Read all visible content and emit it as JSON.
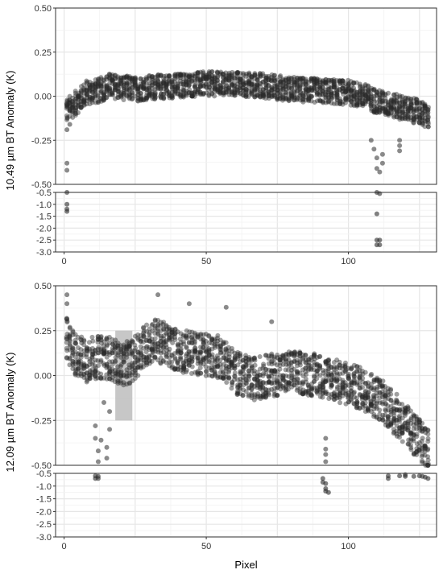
{
  "chart_data": {
    "type": "scatter",
    "xlabel": "Pixel",
    "x_ticks": [
      0,
      50,
      100
    ],
    "xlim": [
      -3,
      131
    ],
    "grid": true,
    "colors": {
      "points": "#2b2b2b",
      "panel_border": "#333333",
      "grid_major": "#e6e6e6",
      "grid_minor": "#f2f2f2",
      "highlight": "#bdbdbd"
    },
    "panels": [
      {
        "ylabel": "10.49 µm BT Anomaly (K)",
        "upper": {
          "ylim": [
            -0.5,
            0.5
          ],
          "y_ticks": [
            "0.50",
            "0.25",
            "0.00",
            "-0.25",
            "-0.50"
          ],
          "y_values": [
            0.5,
            0.25,
            0,
            -0.25,
            -0.5
          ],
          "profile": [
            [
              1,
              -0.08
            ],
            [
              4,
              -0.04
            ],
            [
              8,
              0.02
            ],
            [
              12,
              0.03
            ],
            [
              16,
              0.06
            ],
            [
              20,
              0.05
            ],
            [
              25,
              0.04
            ],
            [
              30,
              0.05
            ],
            [
              40,
              0.06
            ],
            [
              50,
              0.07
            ],
            [
              60,
              0.07
            ],
            [
              70,
              0.06
            ],
            [
              80,
              0.04
            ],
            [
              90,
              0.03
            ],
            [
              100,
              0.02
            ],
            [
              106,
              0.0
            ],
            [
              110,
              -0.03
            ],
            [
              115,
              -0.05
            ],
            [
              120,
              -0.07
            ],
            [
              125,
              -0.09
            ],
            [
              128,
              -0.12
            ]
          ],
          "spread": 0.07,
          "outliers": [
            [
              1,
              -0.38
            ],
            [
              1,
              -0.42
            ],
            [
              1,
              -0.19
            ],
            [
              2,
              -0.16
            ],
            [
              108,
              -0.25
            ],
            [
              109,
              -0.3
            ],
            [
              110,
              -0.35
            ],
            [
              110,
              -0.41
            ],
            [
              111,
              -0.43
            ],
            [
              112,
              -0.38
            ],
            [
              112,
              -0.33
            ],
            [
              118,
              -0.28
            ],
            [
              118,
              -0.31
            ],
            [
              118,
              -0.25
            ]
          ]
        },
        "lower": {
          "ylim": [
            -3.0,
            -0.5
          ],
          "y_ticks": [
            "-0.5",
            "-1.0",
            "-1.5",
            "-2.0",
            "-2.5",
            "-3.0"
          ],
          "y_values": [
            -0.5,
            -1.0,
            -1.5,
            -2.0,
            -2.5,
            -3.0
          ],
          "points": [
            [
              1,
              -0.5
            ],
            [
              1,
              -1.0
            ],
            [
              1,
              -1.2
            ],
            [
              1,
              -1.3
            ],
            [
              110,
              -0.5
            ],
            [
              110,
              -1.4
            ],
            [
              110,
              -2.5
            ],
            [
              110,
              -2.7
            ],
            [
              111,
              -2.5
            ],
            [
              111,
              -2.7
            ],
            [
              111,
              -0.55
            ]
          ]
        }
      },
      {
        "ylabel": "12.09 µm BT Anomaly (K)",
        "highlight": {
          "x": [
            18,
            24
          ],
          "y": [
            -0.25,
            0.25
          ]
        },
        "upper": {
          "ylim": [
            -0.5,
            0.5
          ],
          "y_ticks": [
            "0.50",
            "0.25",
            "0.00",
            "-0.25",
            "-0.50"
          ],
          "y_values": [
            0.5,
            0.25,
            0,
            -0.25,
            -0.5
          ],
          "profile": [
            [
              1,
              0.2
            ],
            [
              4,
              0.12
            ],
            [
              8,
              0.08
            ],
            [
              10,
              0.1
            ],
            [
              16,
              0.1
            ],
            [
              20,
              0.06
            ],
            [
              24,
              0.08
            ],
            [
              28,
              0.16
            ],
            [
              32,
              0.2
            ],
            [
              40,
              0.14
            ],
            [
              48,
              0.12
            ],
            [
              56,
              0.1
            ],
            [
              60,
              0.02
            ],
            [
              66,
              -0.02
            ],
            [
              72,
              0.0
            ],
            [
              80,
              0.02
            ],
            [
              90,
              0.0
            ],
            [
              100,
              -0.05
            ],
            [
              106,
              -0.08
            ],
            [
              112,
              -0.14
            ],
            [
              118,
              -0.24
            ],
            [
              124,
              -0.34
            ],
            [
              128,
              -0.42
            ]
          ],
          "spread": 0.12,
          "outliers": [
            [
              11,
              -0.28
            ],
            [
              11,
              -0.35
            ],
            [
              12,
              -0.42
            ],
            [
              12,
              -0.48
            ],
            [
              13,
              -0.36
            ],
            [
              14,
              -0.15
            ],
            [
              15,
              -0.4
            ],
            [
              15,
              -0.46
            ],
            [
              16,
              -0.3
            ],
            [
              16,
              -0.2
            ],
            [
              92,
              -0.35
            ],
            [
              92,
              -0.44
            ],
            [
              92,
              -0.48
            ],
            [
              92,
              -0.41
            ],
            [
              1,
              0.45
            ],
            [
              1,
              0.4
            ],
            [
              33,
              0.45
            ],
            [
              44,
              0.4
            ],
            [
              57,
              0.38
            ],
            [
              73,
              0.3
            ]
          ]
        },
        "lower": {
          "ylim": [
            -3.0,
            -0.5
          ],
          "y_ticks": [
            "-0.5",
            "-1.0",
            "-1.5",
            "-2.0",
            "-2.5",
            "-3.0"
          ],
          "y_values": [
            -0.5,
            -1.0,
            -1.5,
            -2.0,
            -2.5,
            -3.0
          ],
          "points": [
            [
              11,
              -0.6
            ],
            [
              11,
              -0.7
            ],
            [
              12,
              -0.62
            ],
            [
              12,
              -0.7
            ],
            [
              91,
              -0.7
            ],
            [
              91,
              -0.85
            ],
            [
              92,
              -0.9
            ],
            [
              92,
              -1.1
            ],
            [
              92,
              -1.2
            ],
            [
              93,
              -1.25
            ],
            [
              114,
              -0.6
            ],
            [
              114,
              -0.7
            ],
            [
              118,
              -0.6
            ],
            [
              120,
              -0.55
            ],
            [
              120,
              -0.62
            ],
            [
              123,
              -0.62
            ],
            [
              125,
              -0.6
            ],
            [
              126,
              -0.62
            ],
            [
              127,
              -0.65
            ],
            [
              128,
              -0.7
            ]
          ]
        }
      }
    ]
  }
}
